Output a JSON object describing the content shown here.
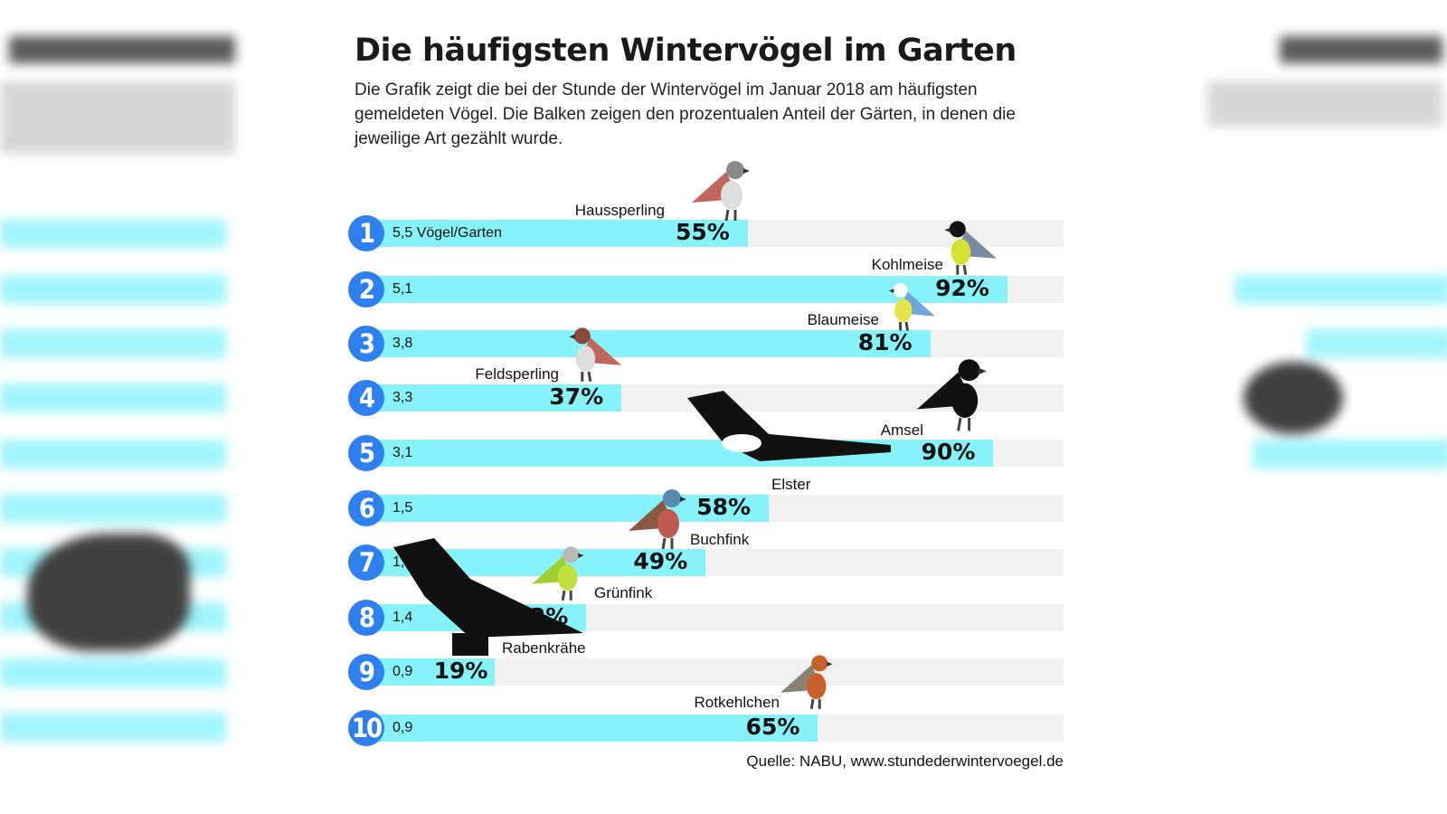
{
  "title": "Die häufigsten Wintervögel im Garten",
  "subtitle": "Die Grafik zeigt die bei der Stunde der Wintervögel im Januar 2018 am häufigsten gemeldeten Vögel. Die Balken zeigen den prozentualen Anteil der Gärten, in denen die jeweilige Art gezählt wurde.",
  "source": "Quelle: NABU, www.stundederwintervoegel.de",
  "colors": {
    "bar": "#86f2fa",
    "track": "#f1f1f1",
    "rank_circle": "#2e7ff0"
  },
  "chart_data": {
    "type": "bar",
    "orientation": "horizontal",
    "xlim": [
      0,
      100
    ],
    "unit": "%",
    "categories": [
      "Haussperling",
      "Kohlmeise",
      "Blaumeise",
      "Feldsperling",
      "Amsel",
      "Elster",
      "Buchfink",
      "Grünfink",
      "Rabenkrähe",
      "Rotkehlchen"
    ],
    "ranks": [
      "1",
      "2",
      "3",
      "4",
      "5",
      "6",
      "7",
      "8",
      "9",
      "10"
    ],
    "values": [
      55,
      92,
      81,
      37,
      90,
      58,
      49,
      32,
      19,
      65
    ],
    "value_labels": [
      "55%",
      "92%",
      "81%",
      "37%",
      "90%",
      "58%",
      "49%",
      "32%",
      "19%",
      "65%"
    ],
    "birds_per_garden": [
      "5,5 Vögel/Garten",
      "5,1",
      "3,8",
      "3,3",
      "3,1",
      "1,5",
      "1,5",
      "1,4",
      "0,9",
      "0,9"
    ]
  }
}
